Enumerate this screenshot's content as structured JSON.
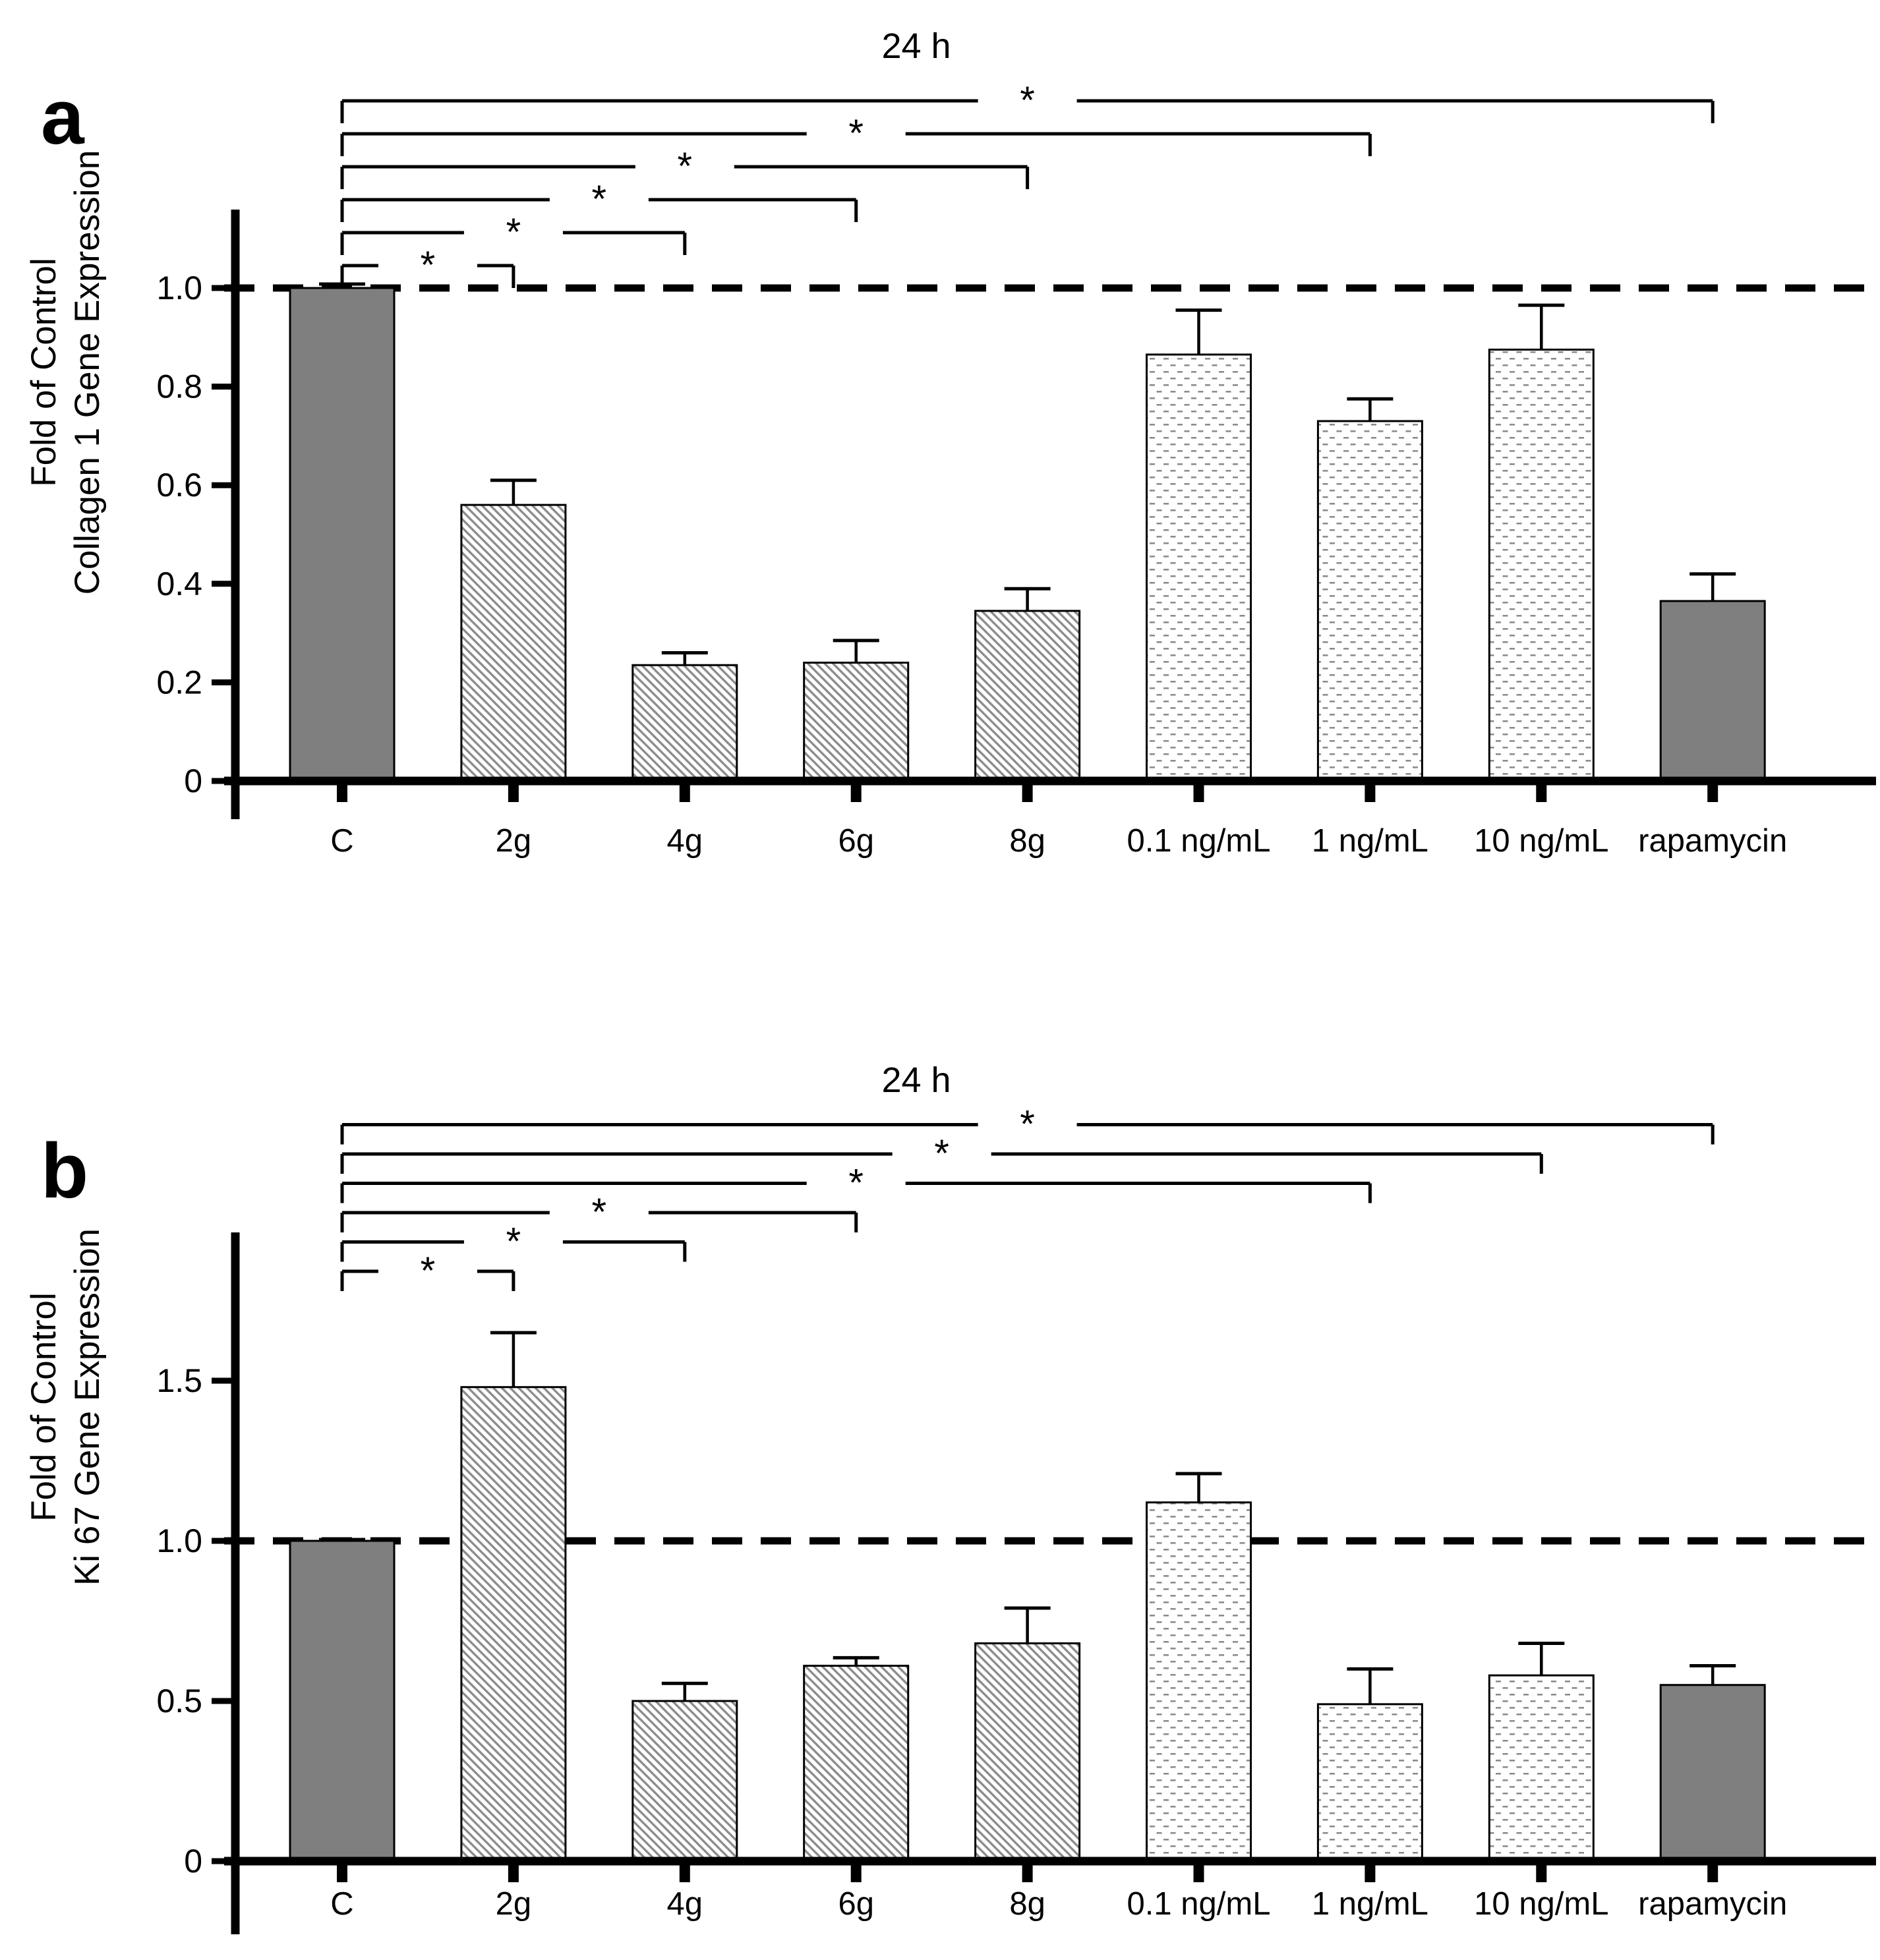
{
  "colors": {
    "background": "#ffffff",
    "solid_fill": "#7f7f7f",
    "pattern_stroke": "#8c8c8c",
    "axis": "#000000"
  },
  "chart_data": [
    {
      "type": "bar",
      "panel_letter": "a",
      "title": "24 h",
      "ylabel": [
        "Fold of Control",
        "Collagen 1 Gene Expression"
      ],
      "xlabel": "",
      "categories": [
        "C",
        "2g",
        "4g",
        "6g",
        "8g",
        "0.1 ng/mL",
        "1 ng/mL",
        "10 ng/mL",
        "rapamycin"
      ],
      "values": [
        1.0,
        0.56,
        0.235,
        0.24,
        0.345,
        0.865,
        0.73,
        0.875,
        0.365
      ],
      "errors_plus": [
        0.008,
        0.05,
        0.025,
        0.045,
        0.045,
        0.09,
        0.045,
        0.09,
        0.055
      ],
      "bar_styles": [
        "solid",
        "hatch",
        "hatch",
        "hatch",
        "hatch",
        "dots",
        "dots",
        "dots",
        "solid"
      ],
      "ylim": [
        0,
        1.16
      ],
      "yticks": [
        {
          "value": 1.0,
          "label": "1.0"
        },
        {
          "value": 0.8,
          "label": "0.8"
        },
        {
          "value": 0.6,
          "label": "0.6"
        },
        {
          "value": 0.4,
          "label": "0.4"
        },
        {
          "value": 0.2,
          "label": "0.2"
        },
        {
          "value": 0.0,
          "label": "0"
        }
      ],
      "reference_line": 1.0,
      "grid": false,
      "legend": null,
      "significance": {
        "reference": "C",
        "label": "*",
        "comparisons_bottom_to_top": [
          "2g",
          "4g",
          "6g",
          "8g",
          "1 ng/mL",
          "rapamycin"
        ]
      }
    },
    {
      "type": "bar",
      "panel_letter": "b",
      "title": "24 h",
      "ylabel": [
        "Fold of Control",
        "Ki 67  Gene Expression"
      ],
      "xlabel": "",
      "categories": [
        "C",
        "2g",
        "4g",
        "6g",
        "8g",
        "0.1 ng/mL",
        "1 ng/mL",
        "10 ng/mL",
        "rapamycin"
      ],
      "values": [
        1.0,
        1.48,
        0.5,
        0.61,
        0.68,
        1.12,
        0.49,
        0.58,
        0.55
      ],
      "errors_plus": [
        0.004,
        0.17,
        0.055,
        0.025,
        0.11,
        0.09,
        0.11,
        0.1,
        0.06
      ],
      "bar_styles": [
        "solid",
        "hatch",
        "hatch",
        "hatch",
        "hatch",
        "dots",
        "dots",
        "dots",
        "solid"
      ],
      "ylim": [
        0,
        1.96
      ],
      "yticks": [
        {
          "value": 1.5,
          "label": "1.5"
        },
        {
          "value": 1.0,
          "label": "1.0"
        },
        {
          "value": 0.5,
          "label": "0.5"
        },
        {
          "value": 0.0,
          "label": "0"
        }
      ],
      "reference_line": 1.0,
      "grid": false,
      "legend": null,
      "significance": {
        "reference": "C",
        "label": "*",
        "comparisons_bottom_to_top": [
          "2g",
          "4g",
          "6g",
          "1 ng/mL",
          "10 ng/mL",
          "rapamycin"
        ]
      }
    }
  ]
}
